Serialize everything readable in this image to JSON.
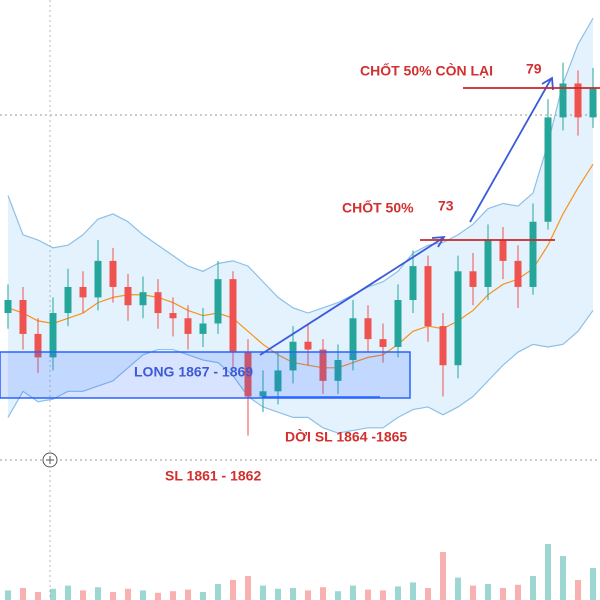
{
  "chart_data": {
    "type": "candlestick",
    "ylim": [
      1859,
      1882
    ],
    "up_color": "#26a69a",
    "down_color": "#ef5350",
    "open": [
      1870.0,
      1870.5,
      1869.2,
      1868.3,
      1870.0,
      1871.0,
      1870.6,
      1872.0,
      1871.0,
      1870.3,
      1870.8,
      1870.0,
      1869.8,
      1869.2,
      1869.6,
      1871.3,
      1868.5,
      1866.8,
      1867.0,
      1867.8,
      1868.9,
      1868.6,
      1867.4,
      1868.2,
      1869.8,
      1869.0,
      1868.7,
      1870.5,
      1871.8,
      1869.5,
      1868.0,
      1871.6,
      1871.0,
      1872.8,
      1872.0,
      1871.0,
      1873.5,
      1877.5,
      1878.8,
      1877.5
    ],
    "high": [
      1871.1,
      1871.0,
      1869.8,
      1870.6,
      1871.7,
      1871.6,
      1872.8,
      1872.5,
      1871.5,
      1871.4,
      1871.3,
      1870.6,
      1870.3,
      1870.2,
      1872.0,
      1871.6,
      1869.0,
      1867.8,
      1868.5,
      1869.5,
      1869.6,
      1869.0,
      1868.8,
      1870.5,
      1870.3,
      1869.6,
      1871.1,
      1872.4,
      1872.2,
      1870.0,
      1872.2,
      1872.3,
      1873.4,
      1873.3,
      1872.6,
      1874.2,
      1878.2,
      1879.6,
      1879.3,
      1879.4
    ],
    "low": [
      1869.4,
      1868.6,
      1867.7,
      1867.8,
      1869.5,
      1870.0,
      1870.1,
      1870.4,
      1869.7,
      1869.8,
      1869.4,
      1869.1,
      1868.6,
      1868.7,
      1869.2,
      1867.9,
      1865.3,
      1866.2,
      1866.5,
      1867.3,
      1868.0,
      1866.9,
      1866.9,
      1867.8,
      1868.5,
      1868.1,
      1868.3,
      1870.0,
      1868.9,
      1866.8,
      1867.5,
      1870.3,
      1870.5,
      1871.3,
      1870.2,
      1870.7,
      1873.2,
      1877.0,
      1876.8,
      1877.1
    ],
    "close": [
      1870.5,
      1869.2,
      1868.3,
      1870.0,
      1871.0,
      1870.6,
      1872.0,
      1871.0,
      1870.3,
      1870.8,
      1870.0,
      1869.8,
      1869.2,
      1869.6,
      1871.3,
      1868.5,
      1866.8,
      1867.0,
      1867.8,
      1868.9,
      1868.6,
      1867.4,
      1868.2,
      1869.8,
      1869.0,
      1868.7,
      1870.5,
      1871.8,
      1869.5,
      1868.0,
      1871.6,
      1871.0,
      1872.8,
      1872.0,
      1871.0,
      1873.5,
      1877.5,
      1878.8,
      1877.5,
      1878.6
    ],
    "bands": {
      "fill": "rgba(33,150,243,0.12)",
      "band_color": "#8cc0e6",
      "middle_color": "#f7931a",
      "upper": [
        1874.5,
        1873.0,
        1872.8,
        1872.5,
        1872.6,
        1873.0,
        1873.6,
        1873.8,
        1873.5,
        1873.0,
        1872.6,
        1872.2,
        1871.8,
        1871.6,
        1871.9,
        1872.0,
        1871.8,
        1871.2,
        1870.6,
        1870.2,
        1870.0,
        1870.2,
        1870.4,
        1870.7,
        1871.0,
        1871.2,
        1871.6,
        1872.3,
        1872.6,
        1872.7,
        1873.0,
        1873.4,
        1874.0,
        1874.2,
        1874.1,
        1874.6,
        1876.5,
        1878.8,
        1880.3,
        1881.3
      ],
      "middle": [
        1870.2,
        1870.0,
        1869.7,
        1869.6,
        1869.8,
        1870.0,
        1870.4,
        1870.6,
        1870.7,
        1870.7,
        1870.6,
        1870.4,
        1870.1,
        1869.9,
        1870.0,
        1869.8,
        1869.3,
        1868.8,
        1868.4,
        1868.1,
        1868.0,
        1867.9,
        1867.9,
        1868.1,
        1868.3,
        1868.4,
        1868.8,
        1869.3,
        1869.5,
        1869.4,
        1869.7,
        1870.1,
        1870.7,
        1871.1,
        1871.3,
        1871.7,
        1872.6,
        1873.8,
        1874.8,
        1875.7
      ],
      "lower": [
        1866.0,
        1867.0,
        1866.6,
        1866.7,
        1867.0,
        1867.0,
        1867.2,
        1867.4,
        1867.9,
        1868.4,
        1868.6,
        1868.6,
        1868.4,
        1868.2,
        1868.1,
        1867.6,
        1866.8,
        1866.4,
        1866.2,
        1866.0,
        1866.0,
        1865.6,
        1865.4,
        1865.5,
        1865.6,
        1865.6,
        1866.0,
        1866.3,
        1866.4,
        1866.1,
        1866.4,
        1866.8,
        1867.4,
        1868.0,
        1868.5,
        1868.8,
        1868.7,
        1868.8,
        1869.3,
        1870.1
      ]
    },
    "volume": {
      "axis": "y2",
      "values": [
        12,
        15,
        10,
        14,
        18,
        12,
        16,
        10,
        14,
        12,
        9,
        11,
        13,
        10,
        20,
        25,
        30,
        18,
        14,
        15,
        12,
        16,
        11,
        18,
        13,
        12,
        17,
        22,
        15,
        60,
        28,
        18,
        20,
        15,
        19,
        30,
        70,
        55,
        25,
        40
      ]
    },
    "y2lim": [
      0,
      100
    ],
    "annotations": {
      "long_zone": "LONG 1867 - 1869",
      "move_sl": "DỜI SL 1864 -1865",
      "sl": "SL 1861 - 1862",
      "tp1": "CHỐT 50%",
      "tp1_price": "73",
      "tp2": "CHỐT 50% CÒN LẠI",
      "tp2_price": "79"
    }
  }
}
